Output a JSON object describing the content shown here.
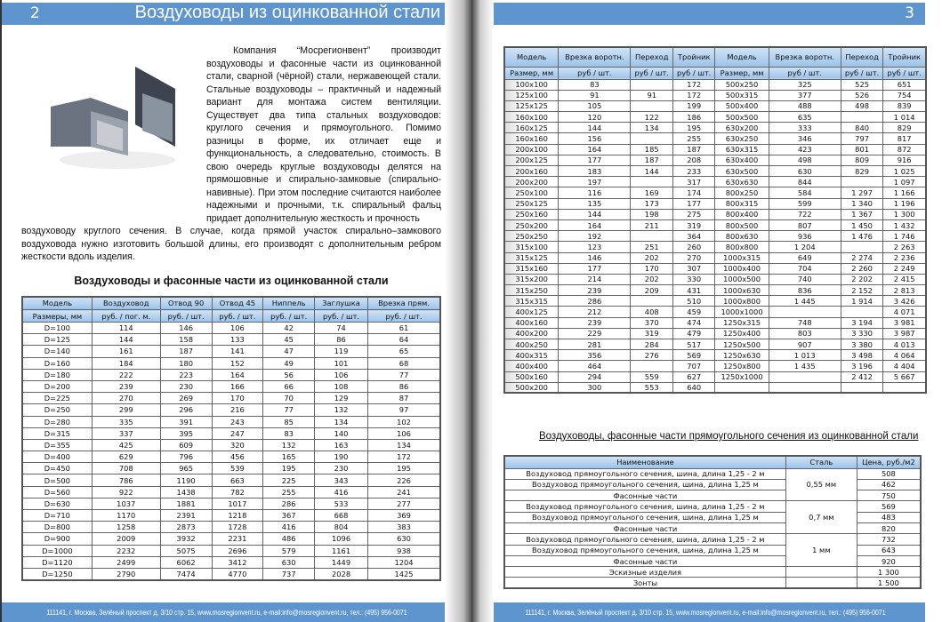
{
  "left": {
    "page_number": "2",
    "title": "Воздуховоды из оцинкованной стали",
    "intro_first": "Компания “Мосрегионвент” производит воздуховоды и фасонные части из оцинкованной стали, сварной (чёрной) стали, нержавеющей стали. Стальные воздуховоды – практичный и надежный вариант для монтажа систем вентиляции. Существует два типа стальных воздуховодов: круглого сечения и прямоугольного. Помимо разницы в форме, их отличает еще и функциональность, а следовательно, стоимость. В свою очередь круглые воздуховоды делятся на прямошовные и спирально-замковые (спирально-навивные). При этом последние считаются наиболее надежными и прочными, т.к. спиральный фальц придает дополнительную жесткость и прочность",
    "intro_rest": "воздуховоду круглого сечения. В случае, когда прямой участок спирально–замкового воздуховода нужно изготовить большой длины, его производят с дополнительным ребром жесткости вдоль изделия.",
    "section_title": "Воздуховоды и фасонные части из оцинкованной стали",
    "round_table": {
      "headers": [
        "Модель",
        "Воздуховод",
        "Отвод 90",
        "Отвод 45",
        "Ниппель",
        "Заглушка",
        "Врезка прям."
      ],
      "units": [
        "Размеры, мм",
        "руб. / пог. м.",
        "руб. / шт.",
        "руб. / шт.",
        "руб. / шт.",
        "руб. / шт.",
        "руб. / шт."
      ],
      "rows": [
        [
          "D=100",
          "114",
          "146",
          "106",
          "42",
          "74",
          "61"
        ],
        [
          "D=125",
          "144",
          "158",
          "133",
          "45",
          "86",
          "64"
        ],
        [
          "D=140",
          "161",
          "187",
          "141",
          "47",
          "119",
          "65"
        ],
        [
          "D=160",
          "184",
          "180",
          "152",
          "49",
          "101",
          "68"
        ],
        [
          "D=180",
          "222",
          "223",
          "164",
          "56",
          "106",
          "77"
        ],
        [
          "D=200",
          "239",
          "230",
          "166",
          "66",
          "108",
          "86"
        ],
        [
          "D=225",
          "270",
          "269",
          "170",
          "70",
          "129",
          "87"
        ],
        [
          "D=250",
          "299",
          "296",
          "216",
          "77",
          "132",
          "97"
        ],
        [
          "D=280",
          "335",
          "391",
          "243",
          "85",
          "134",
          "102"
        ],
        [
          "D=315",
          "337",
          "395",
          "247",
          "83",
          "140",
          "106"
        ],
        [
          "D=355",
          "425",
          "609",
          "320",
          "132",
          "163",
          "134"
        ],
        [
          "D=400",
          "629",
          "796",
          "456",
          "165",
          "190",
          "172"
        ],
        [
          "D=450",
          "708",
          "965",
          "539",
          "195",
          "230",
          "195"
        ],
        [
          "D=500",
          "786",
          "1190",
          "663",
          "225",
          "343",
          "226"
        ],
        [
          "D=560",
          "922",
          "1438",
          "782",
          "255",
          "416",
          "241"
        ],
        [
          "D=630",
          "1037",
          "1881",
          "1017",
          "286",
          "533",
          "277"
        ],
        [
          "D=710",
          "1170",
          "2391",
          "1218",
          "367",
          "668",
          "369"
        ],
        [
          "D=800",
          "1258",
          "2873",
          "1728",
          "416",
          "804",
          "383"
        ],
        [
          "D=900",
          "2009",
          "3932",
          "2231",
          "486",
          "1096",
          "630"
        ],
        [
          "D=1000",
          "2232",
          "5075",
          "2696",
          "579",
          "1161",
          "938"
        ],
        [
          "D=1120",
          "2499",
          "6062",
          "3412",
          "630",
          "1449",
          "1204"
        ],
        [
          "D=1250",
          "2790",
          "7474",
          "4770",
          "737",
          "2028",
          "1425"
        ]
      ]
    },
    "footer": "111141, г. Москва,  Зелёный проспект д. 3/10 стр. 15, www.mosregionvent.ru, e-mail:info@mosregionvent.ru, тел.: (495) 956-0071"
  },
  "right": {
    "page_number": "3",
    "rect_table": {
      "headers": [
        "Модель",
        "Врезка воротн.",
        "Переход",
        "Тройник",
        "Модель",
        "Врезка воротн.",
        "Переход",
        "Тройник"
      ],
      "units": [
        "Размер, мм",
        "руб / шт.",
        "руб / шт.",
        "руб / шт.",
        "Размер, мм",
        "руб / шт.",
        "руб / шт.",
        "руб / шт."
      ],
      "rows": [
        [
          "100x100",
          "83",
          "",
          "172",
          "500x250",
          "325",
          "525",
          "651"
        ],
        [
          "125x100",
          "91",
          "91",
          "172",
          "500x315",
          "377",
          "526",
          "754"
        ],
        [
          "125x125",
          "105",
          "",
          "199",
          "500x400",
          "488",
          "498",
          "839"
        ],
        [
          "160x100",
          "120",
          "122",
          "186",
          "500x500",
          "635",
          "",
          "1 014"
        ],
        [
          "160x125",
          "144",
          "134",
          "195",
          "630x200",
          "333",
          "840",
          "829"
        ],
        [
          "160x160",
          "156",
          "",
          "255",
          "630x250",
          "346",
          "797",
          "817"
        ],
        [
          "200x100",
          "164",
          "185",
          "187",
          "630x315",
          "423",
          "801",
          "872"
        ],
        [
          "200x125",
          "177",
          "187",
          "208",
          "630x400",
          "498",
          "809",
          "916"
        ],
        [
          "200x160",
          "183",
          "144",
          "233",
          "630x500",
          "630",
          "829",
          "1 025"
        ],
        [
          "200x200",
          "197",
          "",
          "317",
          "630x630",
          "844",
          "",
          "1 097"
        ],
        [
          "250x100",
          "116",
          "169",
          "174",
          "800x250",
          "584",
          "1 297",
          "1 166"
        ],
        [
          "250x125",
          "135",
          "173",
          "177",
          "800x315",
          "599",
          "1 340",
          "1 196"
        ],
        [
          "250x160",
          "144",
          "198",
          "275",
          "800x400",
          "722",
          "1 367",
          "1 300"
        ],
        [
          "250x200",
          "164",
          "211",
          "319",
          "800x500",
          "807",
          "1 450",
          "1 432"
        ],
        [
          "250x250",
          "192",
          "",
          "364",
          "800x630",
          "936",
          "1 476",
          "1 746"
        ],
        [
          "315x100",
          "123",
          "251",
          "260",
          "800x800",
          "1 204",
          "",
          "2 263"
        ],
        [
          "315x125",
          "146",
          "202",
          "270",
          "1000x315",
          "649",
          "2 274",
          "2 236"
        ],
        [
          "315x160",
          "177",
          "170",
          "307",
          "1000x400",
          "704",
          "2 260",
          "2 249"
        ],
        [
          "315x200",
          "214",
          "202",
          "330",
          "1000x500",
          "740",
          "2 202",
          "2 415"
        ],
        [
          "315x250",
          "239",
          "209",
          "431",
          "1000x630",
          "836",
          "2 152",
          "2 813"
        ],
        [
          "315x315",
          "286",
          "",
          "510",
          "1000x800",
          "1 445",
          "1 914",
          "3 426"
        ],
        [
          "400x125",
          "212",
          "408",
          "459",
          "1000x1000",
          "",
          "",
          "4 071"
        ],
        [
          "400x160",
          "239",
          "370",
          "474",
          "1250x315",
          "748",
          "3 194",
          "3 981"
        ],
        [
          "400x200",
          "229",
          "319",
          "479",
          "1250x400",
          "803",
          "3 330",
          "3 987"
        ],
        [
          "400x250",
          "281",
          "284",
          "517",
          "1250x500",
          "907",
          "3 380",
          "4 013"
        ],
        [
          "400x315",
          "356",
          "276",
          "569",
          "1250x630",
          "1 013",
          "3 498",
          "4 064"
        ],
        [
          "400x400",
          "464",
          "",
          "707",
          "1250x800",
          "1 435",
          "3 196",
          "4 404"
        ],
        [
          "500x160",
          "294",
          "559",
          "627",
          "1250x1000",
          "",
          "2 412",
          "5 667"
        ],
        [
          "500x200",
          "300",
          "553",
          "640",
          "",
          "",
          "",
          ""
        ]
      ]
    },
    "section_title": "Воздуховоды, фасонные части прямоугольного сечения из оцинкованной стали",
    "price_table": {
      "headers": [
        "Наименование",
        "Сталь",
        "Цена, руб./м2"
      ],
      "groups": [
        {
          "steel": "0,55 мм",
          "items": [
            [
              "Воздуховод прямоугольного сечения, шина, длина 1,25 - 2 м",
              "508"
            ],
            [
              "Воздуховод прямоугольного сечения, шина, длина 1,25 м",
              "462"
            ],
            [
              "Фасонные части",
              "750"
            ]
          ]
        },
        {
          "steel": "0,7 мм",
          "items": [
            [
              "Воздуховод прямоугольного сечения, шина, длина 1,25 - 2 м",
              "569"
            ],
            [
              "Воздуховод прямоугольного сечения, шина, длина 1,25 м",
              "483"
            ],
            [
              "Фасонные части",
              "820"
            ]
          ]
        },
        {
          "steel": "1 мм",
          "items": [
            [
              "Воздуховод прямоугольного сечения, шина, длина 1,25 - 2 м",
              "732"
            ],
            [
              "Воздуховод прямоугольного сечения, шина, длина 1,25 м",
              "643"
            ],
            [
              "Фасонные части",
              "920"
            ]
          ]
        },
        {
          "steel": "",
          "items": [
            [
              "Эскизные изделия",
              "1 300"
            ]
          ]
        },
        {
          "steel": "",
          "items": [
            [
              "Зонты",
              "1 500"
            ]
          ]
        }
      ]
    },
    "footer": "111141, г. Москва,  Зелёный проспект д. 3/10 стр. 15, www.mosregionvent.ru, e-mail:info@mosregionvent.ru, тел.: (495) 956-0071"
  },
  "colors": {
    "header_bar": "#5f95cf",
    "table_header": "#b8d4ee"
  }
}
